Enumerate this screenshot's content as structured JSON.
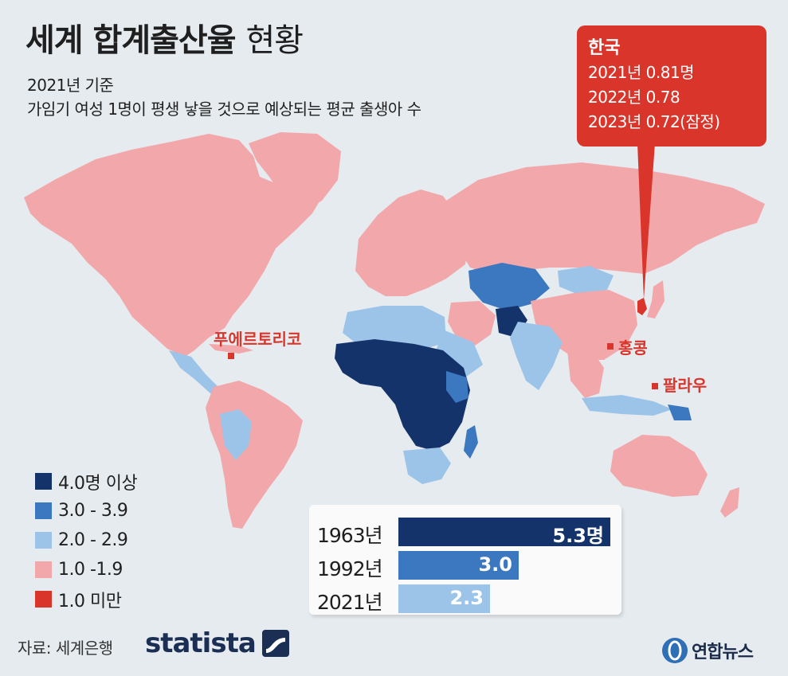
{
  "header": {
    "title_bold": "세계 합계출산율",
    "title_light": "현황",
    "subtitle_line1": "2021년 기준",
    "subtitle_line2": "가임기 여성 1명이 평생 낳을 것으로 예상되는 평균 출생아 수"
  },
  "callout": {
    "name": "한국",
    "lines": [
      "2021년 0.81명",
      "2022년 0.78",
      "2023년 0.72(잠정)"
    ]
  },
  "places": {
    "puerto_rico": "푸에르토리코",
    "hong_kong": "홍콩",
    "palau": "팔라우"
  },
  "legend": [
    {
      "label": "4.0명 이상",
      "color": "#14336b"
    },
    {
      "label": "3.0 - 3.9",
      "color": "#3b78c0"
    },
    {
      "label": "2.0 - 2.9",
      "color": "#9bc4e8"
    },
    {
      "label": "1.0 -1.9",
      "color": "#f2a7ab"
    },
    {
      "label": "1.0 미만",
      "color": "#d9352b"
    }
  ],
  "chart_data": {
    "type": "bar",
    "orientation": "horizontal",
    "title": "",
    "categories": [
      "1963년",
      "1992년",
      "2021년"
    ],
    "values": [
      5.3,
      3.0,
      2.3
    ],
    "value_labels": [
      "5.3명",
      "3.0",
      "2.3"
    ],
    "colors": [
      "#14336b",
      "#3b78c0",
      "#9bc4e8"
    ],
    "xlim": [
      0,
      5.3
    ]
  },
  "footer": {
    "source": "자료: 세계은행",
    "statista": "statista",
    "yonhap": "연합뉴스"
  },
  "map_colors": {
    "background": "#e6ebef",
    "low": "#f2a7ab",
    "mid": "#9bc4e8",
    "high": "#3b78c0",
    "very_high": "#14336b",
    "lowest": "#d9352b"
  }
}
